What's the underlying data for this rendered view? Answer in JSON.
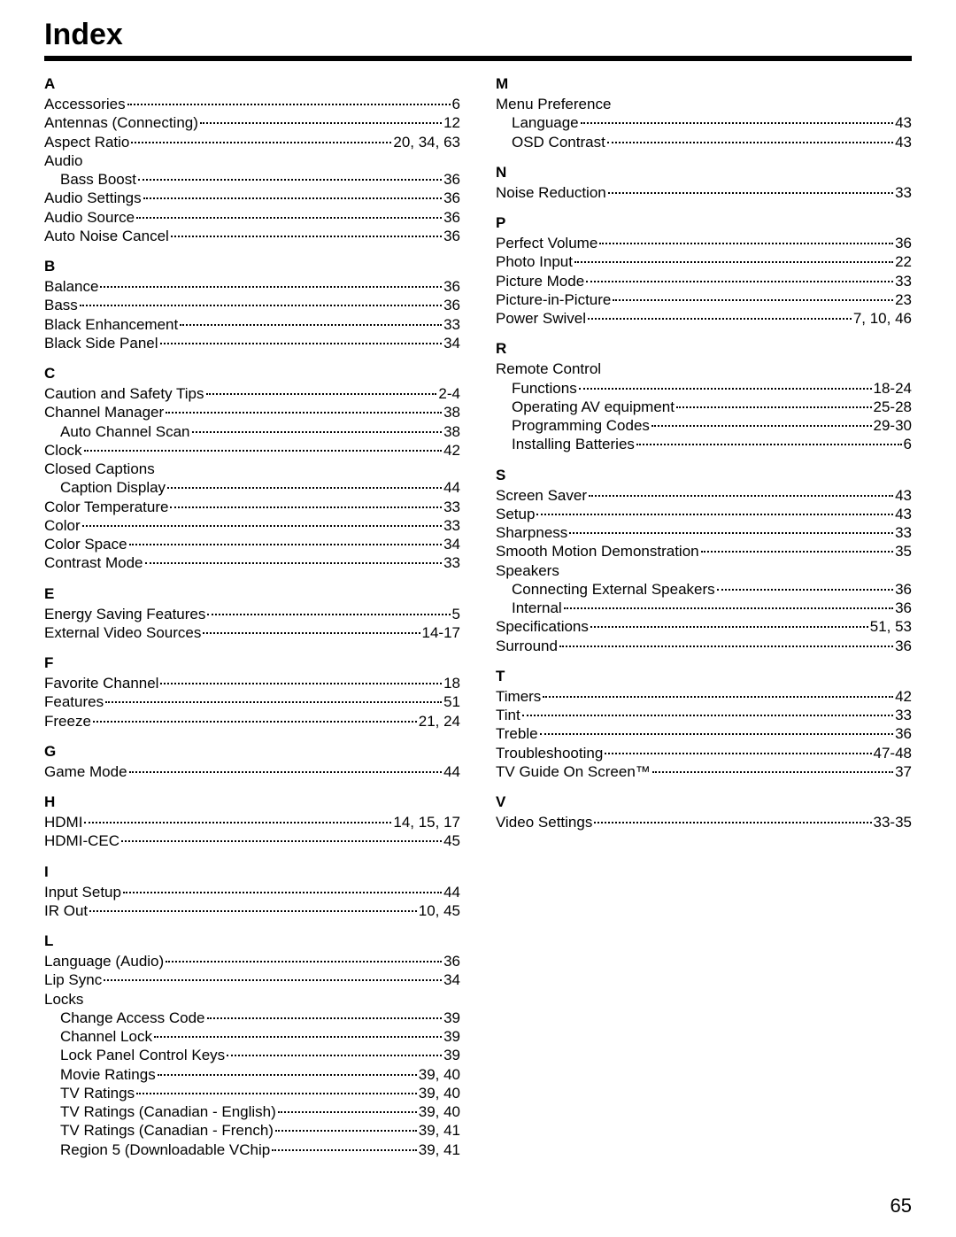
{
  "title": "Index",
  "page_number": "65",
  "left": [
    {
      "head": "A"
    },
    {
      "label": "Accessories",
      "page": "6"
    },
    {
      "label": "Antennas (Connecting)",
      "page": "12"
    },
    {
      "label": "Aspect Ratio",
      "page": "20, 34, 63"
    },
    {
      "plain": "Audio"
    },
    {
      "label": "Bass Boost",
      "page": "36",
      "indent": true
    },
    {
      "label": "Audio Settings",
      "page": "36"
    },
    {
      "label": "Audio Source",
      "page": "36"
    },
    {
      "label": "Auto Noise Cancel",
      "page": "36"
    },
    {
      "head": "B"
    },
    {
      "label": "Balance",
      "page": "36"
    },
    {
      "label": "Bass",
      "page": "36"
    },
    {
      "label": "Black Enhancement",
      "page": "33"
    },
    {
      "label": "Black Side Panel",
      "page": "34"
    },
    {
      "head": "C"
    },
    {
      "label": "Caution and Safety Tips",
      "page": "2-4"
    },
    {
      "label": "Channel Manager",
      "page": "38"
    },
    {
      "label": "Auto Channel Scan",
      "page": "38",
      "indent": true
    },
    {
      "label": "Clock",
      "page": "42"
    },
    {
      "plain": "Closed Captions"
    },
    {
      "label": "Caption Display",
      "page": "44",
      "indent": true
    },
    {
      "label": "Color Temperature",
      "page": "33"
    },
    {
      "label": "Color",
      "page": "33"
    },
    {
      "label": "Color Space",
      "page": "34"
    },
    {
      "label": "Contrast Mode",
      "page": "33"
    },
    {
      "head": "E"
    },
    {
      "label": "Energy Saving Features",
      "page": "5"
    },
    {
      "label": "External Video Sources",
      "page": "14-17"
    },
    {
      "head": "F"
    },
    {
      "label": "Favorite Channel",
      "page": "18"
    },
    {
      "label": "Features",
      "page": "51"
    },
    {
      "label": "Freeze",
      "page": "21, 24"
    },
    {
      "head": "G"
    },
    {
      "label": "Game Mode",
      "page": "44"
    },
    {
      "head": "H"
    },
    {
      "label": "HDMI",
      "page": "14, 15, 17"
    },
    {
      "label": "HDMI-CEC",
      "page": "45"
    },
    {
      "head": "I"
    },
    {
      "label": "Input Setup",
      "page": "44"
    },
    {
      "label": "IR Out",
      "page": "10, 45"
    },
    {
      "head": "L"
    },
    {
      "label": "Language (Audio)",
      "page": "36"
    },
    {
      "label": "Lip Sync",
      "page": "34"
    },
    {
      "plain": "Locks"
    },
    {
      "label": "Change Access Code",
      "page": "39",
      "indent": true
    },
    {
      "label": "Channel Lock",
      "page": "39",
      "indent": true
    },
    {
      "label": "Lock Panel Control Keys",
      "page": "39",
      "indent": true
    },
    {
      "label": "Movie Ratings",
      "page": "39, 40",
      "indent": true
    },
    {
      "label": "TV Ratings",
      "page": "39, 40",
      "indent": true
    },
    {
      "label": "TV Ratings (Canadian - English)",
      "page": "39, 40",
      "indent": true
    },
    {
      "label": "TV Ratings (Canadian - French)",
      "page": "39, 41",
      "indent": true
    },
    {
      "label": "Region 5 (Downloadable VChip",
      "page": "39, 41",
      "indent": true
    }
  ],
  "right": [
    {
      "head": "M"
    },
    {
      "plain": "Menu Preference"
    },
    {
      "label": "Language",
      "page": "43",
      "indent": true
    },
    {
      "label": "OSD Contrast",
      "page": "43",
      "indent": true
    },
    {
      "head": "N"
    },
    {
      "label": "Noise Reduction",
      "page": "33"
    },
    {
      "head": "P"
    },
    {
      "label": "Perfect Volume",
      "page": "36"
    },
    {
      "label": "Photo Input",
      "page": "22"
    },
    {
      "label": "Picture Mode",
      "page": "33"
    },
    {
      "label": "Picture-in-Picture",
      "page": "23"
    },
    {
      "label": "Power Swivel",
      "page": "7, 10, 46"
    },
    {
      "head": "R"
    },
    {
      "plain": "Remote Control"
    },
    {
      "label": "Functions",
      "page": "18-24",
      "indent": true
    },
    {
      "label": "Operating AV equipment",
      "page": "25-28",
      "indent": true
    },
    {
      "label": "Programming Codes",
      "page": "29-30",
      "indent": true
    },
    {
      "label": "Installing Batteries",
      "page": "6",
      "indent": true
    },
    {
      "head": "S"
    },
    {
      "label": "Screen Saver",
      "page": "43"
    },
    {
      "label": "Setup",
      "page": "43"
    },
    {
      "label": "Sharpness",
      "page": "33"
    },
    {
      "label": "Smooth Motion Demonstration",
      "page": "35"
    },
    {
      "plain": "Speakers"
    },
    {
      "label": "Connecting External Speakers",
      "page": "36",
      "indent": true
    },
    {
      "label": "Internal",
      "page": "36",
      "indent": true
    },
    {
      "label": "Specifications",
      "page": "51, 53"
    },
    {
      "label": "Surround",
      "page": "36"
    },
    {
      "head": "T"
    },
    {
      "label": "Timers",
      "page": "42"
    },
    {
      "label": "Tint",
      "page": "33"
    },
    {
      "label": "Treble",
      "page": "36"
    },
    {
      "label": "Troubleshooting",
      "page": "47-48"
    },
    {
      "label": "TV Guide On Screen™",
      "page": "37"
    },
    {
      "head": "V"
    },
    {
      "label": "Video Settings",
      "page": "33-35"
    }
  ]
}
